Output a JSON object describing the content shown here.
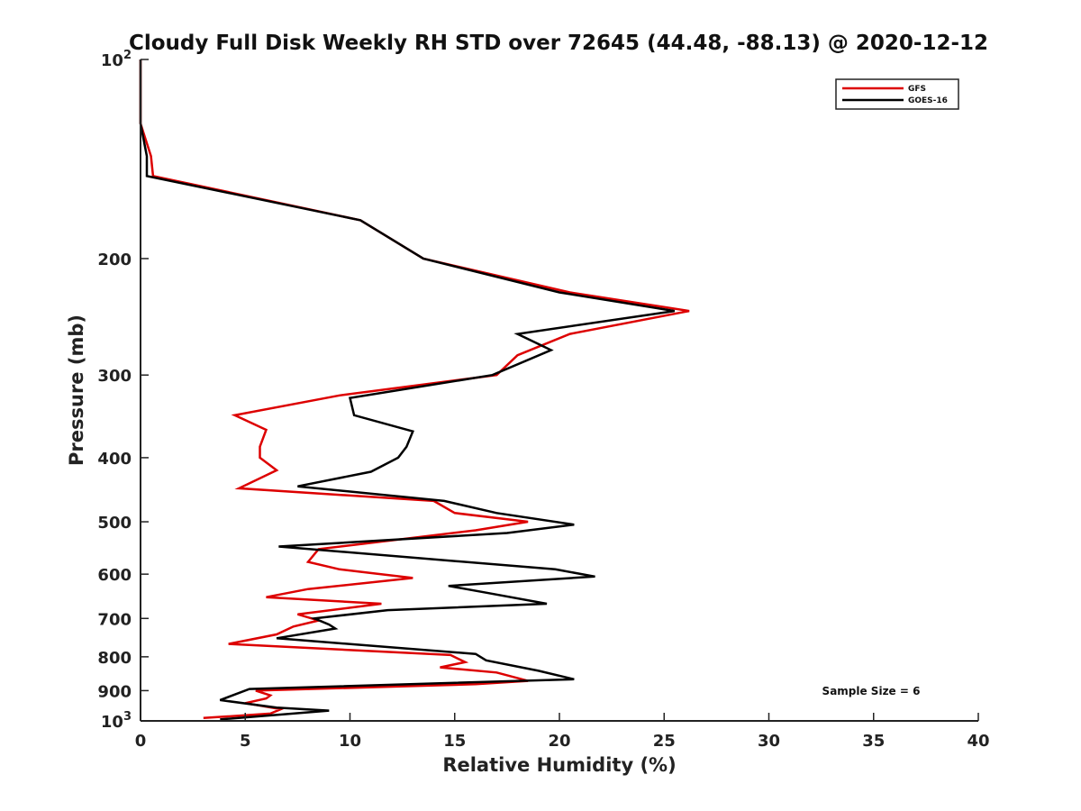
{
  "chart_data": {
    "type": "line",
    "title": "Cloudy Full Disk Weekly RH STD over 72645 (44.48, -88.13) @ 2020-12-12",
    "xlabel": "Relative Humidity (%)",
    "ylabel": "Pressure (mb)",
    "xlim": [
      0,
      40
    ],
    "ylim": [
      100,
      1000
    ],
    "yscale": "log",
    "yreversed": true,
    "xticks": [
      0,
      5,
      10,
      15,
      20,
      25,
      30,
      35,
      40
    ],
    "xtick_labels": [
      "0",
      "5",
      "10",
      "15",
      "20",
      "25",
      "30",
      "35",
      "40"
    ],
    "yticks": [
      {
        "value": 100,
        "label": "10",
        "sup": "2"
      },
      {
        "value": 200,
        "label": "200",
        "sup": ""
      },
      {
        "value": 300,
        "label": "300",
        "sup": ""
      },
      {
        "value": 400,
        "label": "400",
        "sup": ""
      },
      {
        "value": 500,
        "label": "500",
        "sup": ""
      },
      {
        "value": 600,
        "label": "600",
        "sup": ""
      },
      {
        "value": 700,
        "label": "700",
        "sup": ""
      },
      {
        "value": 800,
        "label": "800",
        "sup": ""
      },
      {
        "value": 900,
        "label": "900",
        "sup": ""
      },
      {
        "value": 1000,
        "label": "10",
        "sup": "3"
      }
    ],
    "legend_position": "top-right",
    "annotation": "Sample Size = 6",
    "series": [
      {
        "name": "GFS",
        "color": "#dd0000",
        "points": [
          [
            0.0,
            100
          ],
          [
            0.0,
            125
          ],
          [
            0.5,
            140
          ],
          [
            0.6,
            150
          ],
          [
            10.5,
            175
          ],
          [
            13.5,
            200
          ],
          [
            20.5,
            225
          ],
          [
            26.2,
            240
          ],
          [
            20.5,
            260
          ],
          [
            18.0,
            280
          ],
          [
            17.0,
            300
          ],
          [
            9.5,
            322
          ],
          [
            4.5,
            345
          ],
          [
            6.0,
            363
          ],
          [
            5.7,
            385
          ],
          [
            5.7,
            400
          ],
          [
            6.5,
            418
          ],
          [
            4.7,
            445
          ],
          [
            14.0,
            465
          ],
          [
            15.0,
            485
          ],
          [
            18.5,
            500
          ],
          [
            16.0,
            515
          ],
          [
            8.5,
            550
          ],
          [
            8.0,
            575
          ],
          [
            9.5,
            590
          ],
          [
            13.0,
            608
          ],
          [
            8.0,
            632
          ],
          [
            6.0,
            650
          ],
          [
            11.5,
            665
          ],
          [
            7.5,
            690
          ],
          [
            8.5,
            705
          ],
          [
            7.3,
            720
          ],
          [
            6.5,
            740
          ],
          [
            4.2,
            765
          ],
          [
            14.8,
            795
          ],
          [
            15.5,
            815
          ],
          [
            14.3,
            830
          ],
          [
            17.0,
            845
          ],
          [
            18.5,
            870
          ],
          [
            16.0,
            880
          ],
          [
            5.5,
            900
          ],
          [
            6.2,
            915
          ],
          [
            6.0,
            925
          ],
          [
            5.0,
            940
          ],
          [
            6.7,
            960
          ],
          [
            6.2,
            975
          ],
          [
            3.0,
            990
          ]
        ]
      },
      {
        "name": "GOES-16",
        "color": "#000000",
        "points": [
          [
            0.0,
            100
          ],
          [
            0.0,
            125
          ],
          [
            0.3,
            140
          ],
          [
            0.3,
            150
          ],
          [
            10.5,
            175
          ],
          [
            13.5,
            200
          ],
          [
            20.0,
            225
          ],
          [
            25.5,
            240
          ],
          [
            18.0,
            260
          ],
          [
            19.6,
            275
          ],
          [
            16.8,
            300
          ],
          [
            10.0,
            325
          ],
          [
            10.2,
            345
          ],
          [
            13.0,
            365
          ],
          [
            12.7,
            385
          ],
          [
            12.3,
            400
          ],
          [
            11.0,
            420
          ],
          [
            7.5,
            442
          ],
          [
            14.5,
            465
          ],
          [
            17.0,
            485
          ],
          [
            20.7,
            505
          ],
          [
            17.5,
            520
          ],
          [
            6.6,
            545
          ],
          [
            19.8,
            590
          ],
          [
            21.7,
            605
          ],
          [
            14.7,
            625
          ],
          [
            16.5,
            640
          ],
          [
            19.4,
            665
          ],
          [
            11.8,
            680
          ],
          [
            8.3,
            700
          ],
          [
            9.0,
            715
          ],
          [
            9.3,
            725
          ],
          [
            6.5,
            750
          ],
          [
            16.0,
            792
          ],
          [
            16.5,
            810
          ],
          [
            19.0,
            840
          ],
          [
            20.7,
            865
          ],
          [
            5.2,
            895
          ],
          [
            3.8,
            930
          ],
          [
            6.5,
            955
          ],
          [
            9.0,
            965
          ],
          [
            3.8,
            995
          ]
        ]
      }
    ]
  }
}
